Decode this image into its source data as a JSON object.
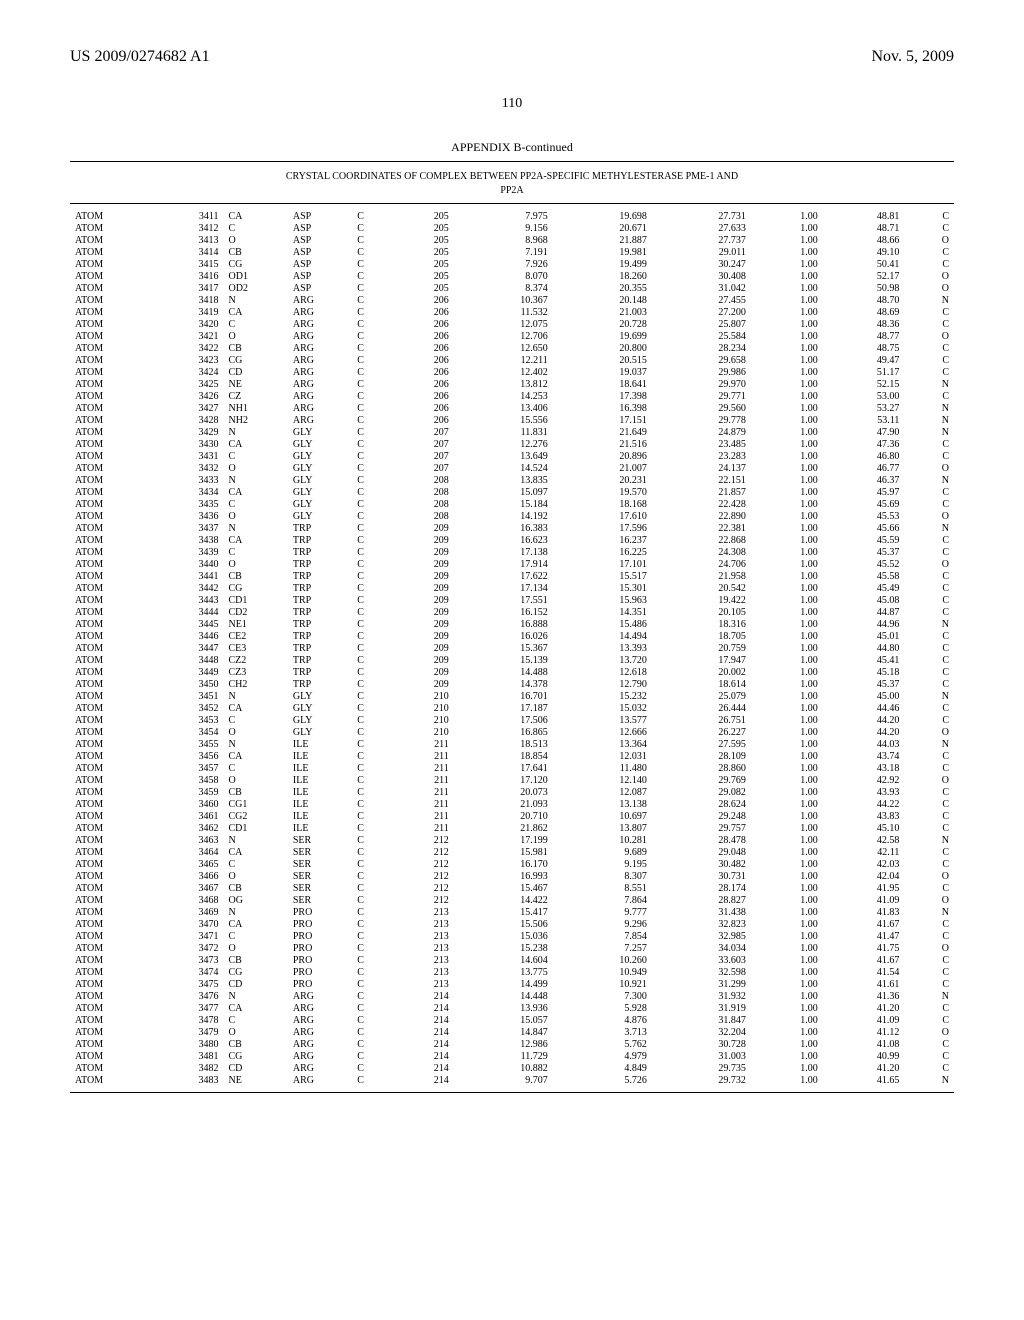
{
  "header": {
    "patent_number": "US 2009/0274682 A1",
    "date": "Nov. 5, 2009",
    "page": "110"
  },
  "appendix": {
    "title": "APPENDIX B-continued",
    "caption_line1": "CRYSTAL COORDINATES OF COMPLEX BETWEEN PP2A-SPECIFIC METHYLESTERASE PME-1 AND",
    "caption_line2": "PP2A"
  },
  "style": {
    "background_color": "#ffffff",
    "text_color": "#000000",
    "header_fontsize": 16,
    "pagenum_fontsize": 14,
    "appendix_title_fontsize": 12,
    "caption_fontsize": 10,
    "row_fontsize": 10,
    "divider_color": "#000000"
  },
  "table": {
    "columns": [
      "record",
      "index",
      "atom",
      "residue",
      "chain",
      "seq",
      "x",
      "y",
      "z",
      "occupancy",
      "bfactor",
      "element"
    ],
    "rows": [
      [
        "ATOM",
        "3411",
        "CA",
        "ASP",
        "C",
        "205",
        "7.975",
        "19.698",
        "27.731",
        "1.00",
        "48.81",
        "C"
      ],
      [
        "ATOM",
        "3412",
        "C",
        "ASP",
        "C",
        "205",
        "9.156",
        "20.671",
        "27.633",
        "1.00",
        "48.71",
        "C"
      ],
      [
        "ATOM",
        "3413",
        "O",
        "ASP",
        "C",
        "205",
        "8.968",
        "21.887",
        "27.737",
        "1.00",
        "48.66",
        "O"
      ],
      [
        "ATOM",
        "3414",
        "CB",
        "ASP",
        "C",
        "205",
        "7.191",
        "19.981",
        "29.011",
        "1.00",
        "49.10",
        "C"
      ],
      [
        "ATOM",
        "3415",
        "CG",
        "ASP",
        "C",
        "205",
        "7.926",
        "19.499",
        "30.247",
        "1.00",
        "50.41",
        "C"
      ],
      [
        "ATOM",
        "3416",
        "OD1",
        "ASP",
        "C",
        "205",
        "8.070",
        "18.260",
        "30.408",
        "1.00",
        "52.17",
        "O"
      ],
      [
        "ATOM",
        "3417",
        "OD2",
        "ASP",
        "C",
        "205",
        "8.374",
        "20.355",
        "31.042",
        "1.00",
        "50.98",
        "O"
      ],
      [
        "ATOM",
        "3418",
        "N",
        "ARG",
        "C",
        "206",
        "10.367",
        "20.148",
        "27.455",
        "1.00",
        "48.70",
        "N"
      ],
      [
        "ATOM",
        "3419",
        "CA",
        "ARG",
        "C",
        "206",
        "11.532",
        "21.003",
        "27.200",
        "1.00",
        "48.69",
        "C"
      ],
      [
        "ATOM",
        "3420",
        "C",
        "ARG",
        "C",
        "206",
        "12.075",
        "20.728",
        "25.807",
        "1.00",
        "48.36",
        "C"
      ],
      [
        "ATOM",
        "3421",
        "O",
        "ARG",
        "C",
        "206",
        "12.706",
        "19.699",
        "25.584",
        "1.00",
        "48.77",
        "O"
      ],
      [
        "ATOM",
        "3422",
        "CB",
        "ARG",
        "C",
        "206",
        "12.650",
        "20.800",
        "28.234",
        "1.00",
        "48.75",
        "C"
      ],
      [
        "ATOM",
        "3423",
        "CG",
        "ARG",
        "C",
        "206",
        "12.211",
        "20.515",
        "29.658",
        "1.00",
        "49.47",
        "C"
      ],
      [
        "ATOM",
        "3424",
        "CD",
        "ARG",
        "C",
        "206",
        "12.402",
        "19.037",
        "29.986",
        "1.00",
        "51.17",
        "C"
      ],
      [
        "ATOM",
        "3425",
        "NE",
        "ARG",
        "C",
        "206",
        "13.812",
        "18.641",
        "29.970",
        "1.00",
        "52.15",
        "N"
      ],
      [
        "ATOM",
        "3426",
        "CZ",
        "ARG",
        "C",
        "206",
        "14.253",
        "17.398",
        "29.771",
        "1.00",
        "53.00",
        "C"
      ],
      [
        "ATOM",
        "3427",
        "NH1",
        "ARG",
        "C",
        "206",
        "13.406",
        "16.398",
        "29.560",
        "1.00",
        "53.27",
        "N"
      ],
      [
        "ATOM",
        "3428",
        "NH2",
        "ARG",
        "C",
        "206",
        "15.556",
        "17.151",
        "29.778",
        "1.00",
        "53.11",
        "N"
      ],
      [
        "ATOM",
        "3429",
        "N",
        "GLY",
        "C",
        "207",
        "11.831",
        "21.649",
        "24.879",
        "1.00",
        "47.90",
        "N"
      ],
      [
        "ATOM",
        "3430",
        "CA",
        "GLY",
        "C",
        "207",
        "12.276",
        "21.516",
        "23.485",
        "1.00",
        "47.36",
        "C"
      ],
      [
        "ATOM",
        "3431",
        "C",
        "GLY",
        "C",
        "207",
        "13.649",
        "20.896",
        "23.283",
        "1.00",
        "46.80",
        "C"
      ],
      [
        "ATOM",
        "3432",
        "O",
        "GLY",
        "C",
        "207",
        "14.524",
        "21.007",
        "24.137",
        "1.00",
        "46.77",
        "O"
      ],
      [
        "ATOM",
        "3433",
        "N",
        "GLY",
        "C",
        "208",
        "13.835",
        "20.231",
        "22.151",
        "1.00",
        "46.37",
        "N"
      ],
      [
        "ATOM",
        "3434",
        "CA",
        "GLY",
        "C",
        "208",
        "15.097",
        "19.570",
        "21.857",
        "1.00",
        "45.97",
        "C"
      ],
      [
        "ATOM",
        "3435",
        "C",
        "GLY",
        "C",
        "208",
        "15.184",
        "18.168",
        "22.428",
        "1.00",
        "45.69",
        "C"
      ],
      [
        "ATOM",
        "3436",
        "O",
        "GLY",
        "C",
        "208",
        "14.192",
        "17.610",
        "22.890",
        "1.00",
        "45.53",
        "O"
      ],
      [
        "ATOM",
        "3437",
        "N",
        "TRP",
        "C",
        "209",
        "16.383",
        "17.596",
        "22.381",
        "1.00",
        "45.66",
        "N"
      ],
      [
        "ATOM",
        "3438",
        "CA",
        "TRP",
        "C",
        "209",
        "16.623",
        "16.237",
        "22.868",
        "1.00",
        "45.59",
        "C"
      ],
      [
        "ATOM",
        "3439",
        "C",
        "TRP",
        "C",
        "209",
        "17.138",
        "16.225",
        "24.308",
        "1.00",
        "45.37",
        "C"
      ],
      [
        "ATOM",
        "3440",
        "O",
        "TRP",
        "C",
        "209",
        "17.914",
        "17.101",
        "24.706",
        "1.00",
        "45.52",
        "O"
      ],
      [
        "ATOM",
        "3441",
        "CB",
        "TRP",
        "C",
        "209",
        "17.622",
        "15.517",
        "21.958",
        "1.00",
        "45.58",
        "C"
      ],
      [
        "ATOM",
        "3442",
        "CG",
        "TRP",
        "C",
        "209",
        "17.134",
        "15.301",
        "20.542",
        "1.00",
        "45.49",
        "C"
      ],
      [
        "ATOM",
        "3443",
        "CD1",
        "TRP",
        "C",
        "209",
        "17.551",
        "15.963",
        "19.422",
        "1.00",
        "45.08",
        "C"
      ],
      [
        "ATOM",
        "3444",
        "CD2",
        "TRP",
        "C",
        "209",
        "16.152",
        "14.351",
        "20.105",
        "1.00",
        "44.87",
        "C"
      ],
      [
        "ATOM",
        "3445",
        "NE1",
        "TRP",
        "C",
        "209",
        "16.888",
        "15.486",
        "18.316",
        "1.00",
        "44.96",
        "N"
      ],
      [
        "ATOM",
        "3446",
        "CE2",
        "TRP",
        "C",
        "209",
        "16.026",
        "14.494",
        "18.705",
        "1.00",
        "45.01",
        "C"
      ],
      [
        "ATOM",
        "3447",
        "CE3",
        "TRP",
        "C",
        "209",
        "15.367",
        "13.393",
        "20.759",
        "1.00",
        "44.80",
        "C"
      ],
      [
        "ATOM",
        "3448",
        "CZ2",
        "TRP",
        "C",
        "209",
        "15.139",
        "13.720",
        "17.947",
        "1.00",
        "45.41",
        "C"
      ],
      [
        "ATOM",
        "3449",
        "CZ3",
        "TRP",
        "C",
        "209",
        "14.488",
        "12.618",
        "20.002",
        "1.00",
        "45.18",
        "C"
      ],
      [
        "ATOM",
        "3450",
        "CH2",
        "TRP",
        "C",
        "209",
        "14.378",
        "12.790",
        "18.614",
        "1.00",
        "45.37",
        "C"
      ],
      [
        "ATOM",
        "3451",
        "N",
        "GLY",
        "C",
        "210",
        "16.701",
        "15.232",
        "25.079",
        "1.00",
        "45.00",
        "N"
      ],
      [
        "ATOM",
        "3452",
        "CA",
        "GLY",
        "C",
        "210",
        "17.187",
        "15.032",
        "26.444",
        "1.00",
        "44.46",
        "C"
      ],
      [
        "ATOM",
        "3453",
        "C",
        "GLY",
        "C",
        "210",
        "17.506",
        "13.577",
        "26.751",
        "1.00",
        "44.20",
        "C"
      ],
      [
        "ATOM",
        "3454",
        "O",
        "GLY",
        "C",
        "210",
        "16.865",
        "12.666",
        "26.227",
        "1.00",
        "44.20",
        "O"
      ],
      [
        "ATOM",
        "3455",
        "N",
        "ILE",
        "C",
        "211",
        "18.513",
        "13.364",
        "27.595",
        "1.00",
        "44.03",
        "N"
      ],
      [
        "ATOM",
        "3456",
        "CA",
        "ILE",
        "C",
        "211",
        "18.854",
        "12.031",
        "28.109",
        "1.00",
        "43.74",
        "C"
      ],
      [
        "ATOM",
        "3457",
        "C",
        "ILE",
        "C",
        "211",
        "17.641",
        "11.480",
        "28.860",
        "1.00",
        "43.18",
        "C"
      ],
      [
        "ATOM",
        "3458",
        "O",
        "ILE",
        "C",
        "211",
        "17.120",
        "12.140",
        "29.769",
        "1.00",
        "42.92",
        "O"
      ],
      [
        "ATOM",
        "3459",
        "CB",
        "ILE",
        "C",
        "211",
        "20.073",
        "12.087",
        "29.082",
        "1.00",
        "43.93",
        "C"
      ],
      [
        "ATOM",
        "3460",
        "CG1",
        "ILE",
        "C",
        "211",
        "21.093",
        "13.138",
        "28.624",
        "1.00",
        "44.22",
        "C"
      ],
      [
        "ATOM",
        "3461",
        "CG2",
        "ILE",
        "C",
        "211",
        "20.710",
        "10.697",
        "29.248",
        "1.00",
        "43.83",
        "C"
      ],
      [
        "ATOM",
        "3462",
        "CD1",
        "ILE",
        "C",
        "211",
        "21.862",
        "13.807",
        "29.757",
        "1.00",
        "45.10",
        "C"
      ],
      [
        "ATOM",
        "3463",
        "N",
        "SER",
        "C",
        "212",
        "17.199",
        "10.281",
        "28.478",
        "1.00",
        "42.58",
        "N"
      ],
      [
        "ATOM",
        "3464",
        "CA",
        "SER",
        "C",
        "212",
        "15.981",
        "9.689",
        "29.048",
        "1.00",
        "42.11",
        "C"
      ],
      [
        "ATOM",
        "3465",
        "C",
        "SER",
        "C",
        "212",
        "16.170",
        "9.195",
        "30.482",
        "1.00",
        "42.03",
        "C"
      ],
      [
        "ATOM",
        "3466",
        "O",
        "SER",
        "C",
        "212",
        "16.993",
        "8.307",
        "30.731",
        "1.00",
        "42.04",
        "O"
      ],
      [
        "ATOM",
        "3467",
        "CB",
        "SER",
        "C",
        "212",
        "15.467",
        "8.551",
        "28.174",
        "1.00",
        "41.95",
        "C"
      ],
      [
        "ATOM",
        "3468",
        "OG",
        "SER",
        "C",
        "212",
        "14.422",
        "7.864",
        "28.827",
        "1.00",
        "41.09",
        "O"
      ],
      [
        "ATOM",
        "3469",
        "N",
        "PRO",
        "C",
        "213",
        "15.417",
        "9.777",
        "31.438",
        "1.00",
        "41.83",
        "N"
      ],
      [
        "ATOM",
        "3470",
        "CA",
        "PRO",
        "C",
        "213",
        "15.506",
        "9.296",
        "32.823",
        "1.00",
        "41.67",
        "C"
      ],
      [
        "ATOM",
        "3471",
        "C",
        "PRO",
        "C",
        "213",
        "15.036",
        "7.854",
        "32.985",
        "1.00",
        "41.47",
        "C"
      ],
      [
        "ATOM",
        "3472",
        "O",
        "PRO",
        "C",
        "213",
        "15.238",
        "7.257",
        "34.034",
        "1.00",
        "41.75",
        "O"
      ],
      [
        "ATOM",
        "3473",
        "CB",
        "PRO",
        "C",
        "213",
        "14.604",
        "10.260",
        "33.603",
        "1.00",
        "41.67",
        "C"
      ],
      [
        "ATOM",
        "3474",
        "CG",
        "PRO",
        "C",
        "213",
        "13.775",
        "10.949",
        "32.598",
        "1.00",
        "41.54",
        "C"
      ],
      [
        "ATOM",
        "3475",
        "CD",
        "PRO",
        "C",
        "213",
        "14.499",
        "10.921",
        "31.299",
        "1.00",
        "41.61",
        "C"
      ],
      [
        "ATOM",
        "3476",
        "N",
        "ARG",
        "C",
        "214",
        "14.448",
        "7.300",
        "31.932",
        "1.00",
        "41.36",
        "N"
      ],
      [
        "ATOM",
        "3477",
        "CA",
        "ARG",
        "C",
        "214",
        "13.936",
        "5.928",
        "31.919",
        "1.00",
        "41.20",
        "C"
      ],
      [
        "ATOM",
        "3478",
        "C",
        "ARG",
        "C",
        "214",
        "15.057",
        "4.876",
        "31.847",
        "1.00",
        "41.09",
        "C"
      ],
      [
        "ATOM",
        "3479",
        "O",
        "ARG",
        "C",
        "214",
        "14.847",
        "3.713",
        "32.204",
        "1.00",
        "41.12",
        "O"
      ],
      [
        "ATOM",
        "3480",
        "CB",
        "ARG",
        "C",
        "214",
        "12.986",
        "5.762",
        "30.728",
        "1.00",
        "41.08",
        "C"
      ],
      [
        "ATOM",
        "3481",
        "CG",
        "ARG",
        "C",
        "214",
        "11.729",
        "4.979",
        "31.003",
        "1.00",
        "40.99",
        "C"
      ],
      [
        "ATOM",
        "3482",
        "CD",
        "ARG",
        "C",
        "214",
        "10.882",
        "4.849",
        "29.735",
        "1.00",
        "41.20",
        "C"
      ],
      [
        "ATOM",
        "3483",
        "NE",
        "ARG",
        "C",
        "214",
        "9.707",
        "5.726",
        "29.732",
        "1.00",
        "41.65",
        "N"
      ]
    ]
  }
}
